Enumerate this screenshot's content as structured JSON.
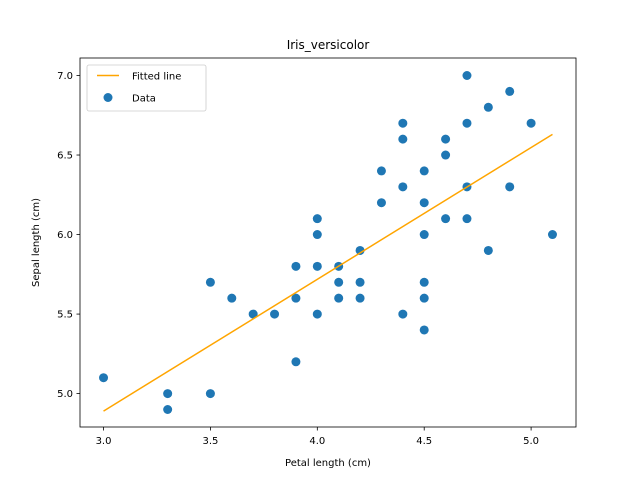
{
  "chart_data": {
    "type": "scatter",
    "title": "Iris_versicolor",
    "xlabel": "Petal length (cm)",
    "ylabel": "Sepal length (cm)",
    "xlim": [
      2.89,
      5.21
    ],
    "ylim": [
      4.79,
      7.11
    ],
    "x_ticks": [
      3.0,
      3.5,
      4.0,
      4.5,
      5.0
    ],
    "x_tick_labels": [
      "3.0",
      "3.5",
      "4.0",
      "4.5",
      "5.0"
    ],
    "y_ticks": [
      5.0,
      5.5,
      6.0,
      6.5,
      7.0
    ],
    "y_tick_labels": [
      "5.0",
      "5.5",
      "6.0",
      "6.5",
      "7.0"
    ],
    "grid": false,
    "legend_position": "top-left",
    "series": [
      {
        "name": "Data",
        "type": "scatter",
        "color": "#1f77b4",
        "points": [
          [
            3.0,
            5.1
          ],
          [
            3.3,
            5.0
          ],
          [
            3.3,
            4.9
          ],
          [
            3.5,
            5.7
          ],
          [
            3.5,
            5.0
          ],
          [
            3.6,
            5.6
          ],
          [
            3.7,
            5.5
          ],
          [
            3.8,
            5.5
          ],
          [
            3.9,
            5.8
          ],
          [
            3.9,
            5.6
          ],
          [
            3.9,
            5.2
          ],
          [
            4.0,
            6.1
          ],
          [
            4.0,
            6.0
          ],
          [
            4.0,
            5.8
          ],
          [
            4.0,
            5.5
          ],
          [
            4.1,
            5.8
          ],
          [
            4.1,
            5.7
          ],
          [
            4.1,
            5.6
          ],
          [
            4.2,
            5.9
          ],
          [
            4.2,
            5.7
          ],
          [
            4.2,
            5.6
          ],
          [
            4.3,
            6.4
          ],
          [
            4.3,
            6.2
          ],
          [
            4.4,
            6.7
          ],
          [
            4.4,
            6.6
          ],
          [
            4.4,
            6.3
          ],
          [
            4.4,
            5.5
          ],
          [
            4.5,
            6.4
          ],
          [
            4.5,
            6.2
          ],
          [
            4.5,
            6.0
          ],
          [
            4.5,
            5.7
          ],
          [
            4.5,
            5.6
          ],
          [
            4.5,
            5.4
          ],
          [
            4.6,
            6.6
          ],
          [
            4.6,
            6.5
          ],
          [
            4.6,
            6.1
          ],
          [
            4.7,
            7.0
          ],
          [
            4.7,
            6.7
          ],
          [
            4.7,
            6.3
          ],
          [
            4.7,
            6.1
          ],
          [
            4.8,
            6.8
          ],
          [
            4.8,
            5.9
          ],
          [
            4.9,
            6.9
          ],
          [
            4.9,
            6.3
          ],
          [
            5.0,
            6.7
          ],
          [
            5.1,
            6.0
          ]
        ]
      },
      {
        "name": "Fitted line",
        "type": "line",
        "color": "#ffa500",
        "points": [
          [
            3.0,
            4.89
          ],
          [
            5.1,
            6.63
          ]
        ]
      }
    ]
  }
}
